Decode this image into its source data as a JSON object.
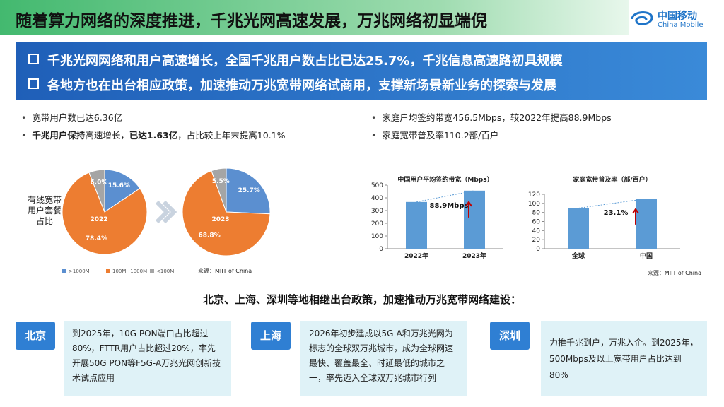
{
  "header": {
    "title": "随着算力网络的深度推进，千兆光网高速发展，万兆网络初显端倪",
    "logo_cn": "中国移动",
    "logo_en": "China Mobile"
  },
  "banner": [
    "千兆光网网络和用户高速增长，全国千兆用户数占比已达25.7%，千兆信息高速路初具规模",
    "各地方也在出台相应政策，加速推动万兆宽带网络试商用，支撑新场景新业务的探索与发展"
  ],
  "left_bullets": [
    {
      "parts": [
        {
          "text": "宽带用户数已达6.36亿"
        }
      ]
    },
    {
      "parts": [
        {
          "text": "千兆用户保持",
          "bold": true
        },
        {
          "text": "高速增长，"
        },
        {
          "text": "已达1.63亿",
          "bold": true
        },
        {
          "text": "，占比较上年末提高10.1%"
        }
      ]
    }
  ],
  "right_bullets": [
    {
      "parts": [
        {
          "text": "家庭户均签约带宽456.5Mbps，较2022年提高88.9Mbps"
        }
      ]
    },
    {
      "parts": [
        {
          "text": "家庭宽带普及率110.2部/百户"
        }
      ]
    }
  ],
  "pie_caption": "有线宽带用户套餐占比",
  "pie_source": "来源：MIIT of China",
  "bar_source": "来源：MIIT of China",
  "chart_data": [
    {
      "type": "pie",
      "title": "2022",
      "categories": [
        ">1000M",
        "100M~1000M",
        "<100M"
      ],
      "values": [
        15.6,
        78.4,
        6.0
      ],
      "value_labels": [
        "15.6%",
        "78.4%",
        "6.0%"
      ],
      "colors": [
        "#5b8fd0",
        "#ed7d31",
        "#a5a5a5"
      ]
    },
    {
      "type": "pie",
      "title": "2023",
      "values": [
        25.7,
        68.8,
        5.5
      ],
      "value_labels": [
        "25.7%",
        "68.8%",
        "5.5%"
      ],
      "colors": [
        "#5b8fd0",
        "#ed7d31",
        "#a5a5a5"
      ]
    },
    {
      "type": "bar",
      "title": "中国用户平均签约带宽（Mbps）",
      "categories": [
        "2022年",
        "2023年"
      ],
      "values": [
        367.6,
        456.5
      ],
      "color": "#5b9bd5",
      "ylim": [
        0,
        500
      ],
      "yticks": [
        0,
        100,
        200,
        300,
        400,
        500
      ],
      "annotation": "88.9Mbps"
    },
    {
      "type": "bar",
      "title": "家庭宽带普及率（部/百户）",
      "categories": [
        "全球",
        "中国"
      ],
      "values": [
        89.5,
        110.2
      ],
      "color": "#5b9bd5",
      "ylim": [
        0,
        120
      ],
      "yticks": [
        0,
        20,
        40,
        60,
        80,
        100,
        120
      ],
      "annotation": "23.1%"
    }
  ],
  "heading": "北京、上海、深圳等地相继出台政策，加速推动万兆宽带网络建设：",
  "cards": [
    {
      "city": "北京",
      "text": "到2025年，10G PON端口占比超过80%，FTTR用户占比超过20%，率先开展50G PON等F5G-A万兆光网创新技术试点应用"
    },
    {
      "city": "上海",
      "text": "2026年初步建成以5G-A和万兆光网为标志的全球双万兆城市，成为全球网速最快、覆盖最全、时延最低的城市之一，率先迈入全球双万兆城市行列"
    },
    {
      "city": "深圳",
      "text": "力推千兆到户，万兆入企。到2025年，500Mbps及以上宽带用户占比达到80%"
    }
  ]
}
